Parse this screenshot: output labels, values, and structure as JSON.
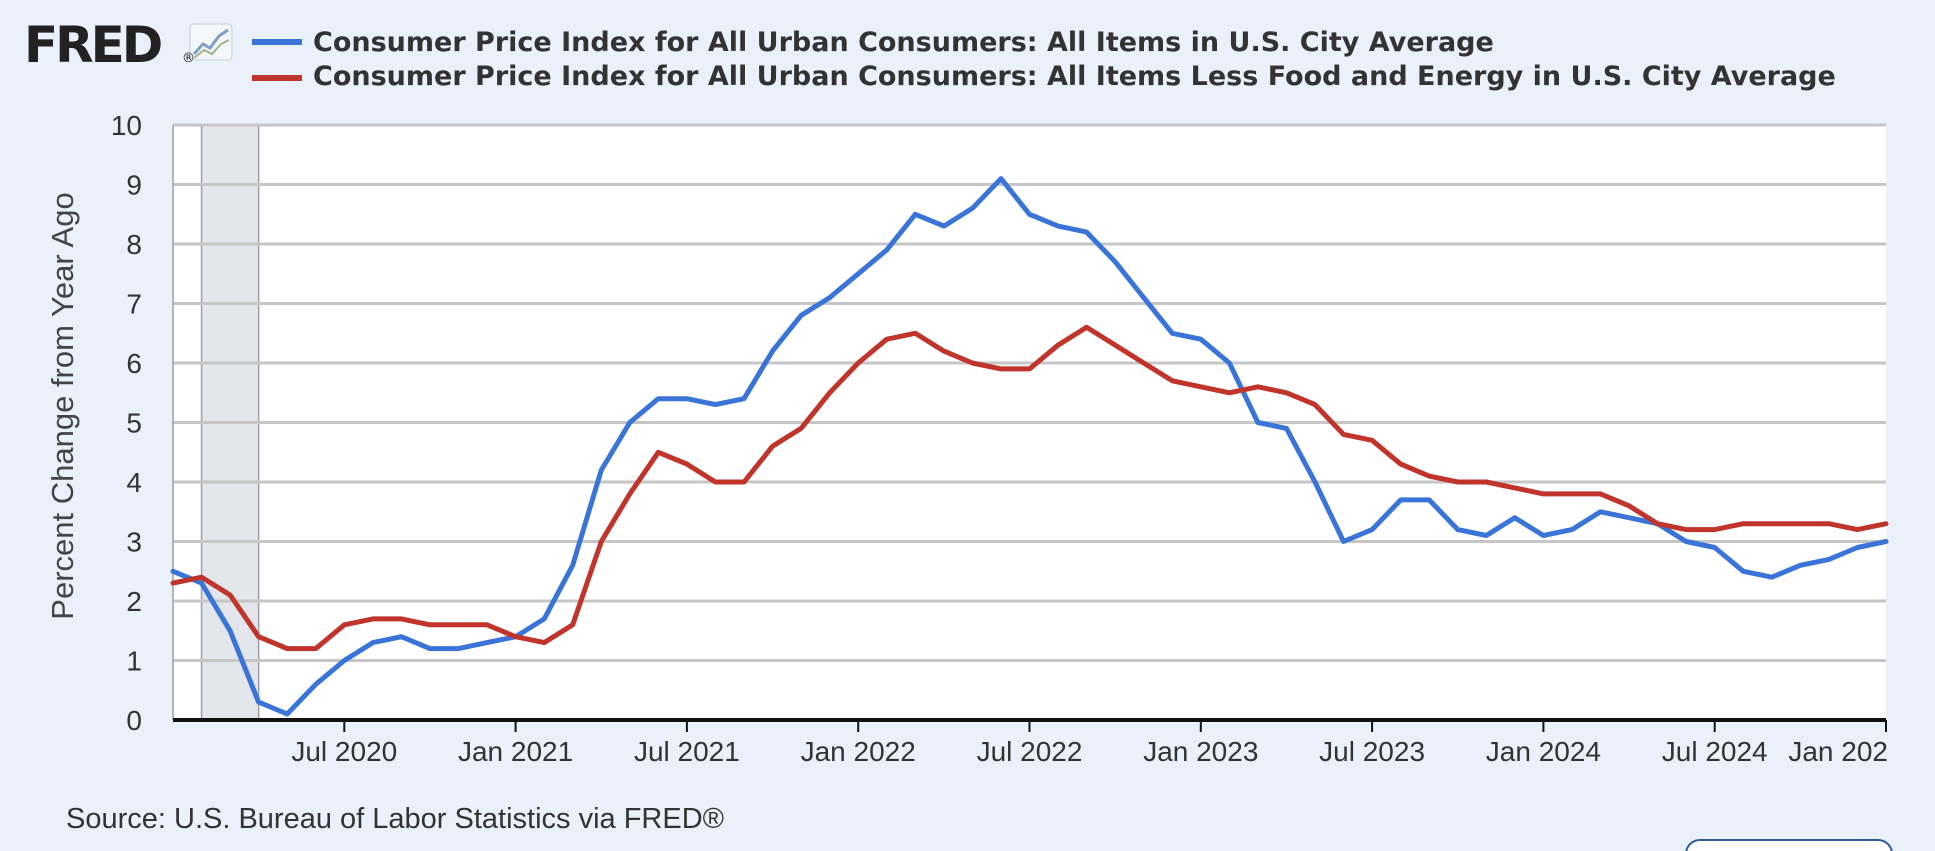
{
  "brand": {
    "name": "FRED",
    "mark": "®"
  },
  "source": "Source: U.S. Bureau of Labor Statistics via FRED®",
  "colors": {
    "series1": "#3a74d8",
    "series2": "#c0342c",
    "recession": "#e3e6ea",
    "grid": "#c6c6c6",
    "background": "#eaf1fa"
  },
  "chart_data": {
    "type": "line",
    "title": "",
    "xlabel": "",
    "ylabel": "Percent Change from Year Ago",
    "ylim": [
      0,
      10
    ],
    "yticks": [
      "0",
      "1",
      "2",
      "3",
      "4",
      "5",
      "6",
      "7",
      "8",
      "9",
      "10"
    ],
    "x_start": "2020-01",
    "x_end": "2025-01",
    "xticks": [
      {
        "label": "Jul 2020",
        "month": 6
      },
      {
        "label": "Jan 2021",
        "month": 12
      },
      {
        "label": "Jul 2021",
        "month": 18
      },
      {
        "label": "Jan 2022",
        "month": 24
      },
      {
        "label": "Jul 2022",
        "month": 30
      },
      {
        "label": "Jan 2023",
        "month": 36
      },
      {
        "label": "Jul 2023",
        "month": 42
      },
      {
        "label": "Jan 2024",
        "month": 48
      },
      {
        "label": "Jul 2024",
        "month": 54
      },
      {
        "label": "Jan 202",
        "month": 60
      }
    ],
    "recession": {
      "start_month": 1,
      "end_month": 3
    },
    "series": [
      {
        "name": "Consumer Price Index for All Urban Consumers: All Items in U.S. City Average",
        "color": "#3a74d8",
        "values": [
          2.5,
          2.3,
          1.5,
          0.3,
          0.1,
          0.6,
          1.0,
          1.3,
          1.4,
          1.2,
          1.2,
          1.3,
          1.4,
          1.7,
          2.6,
          4.2,
          5.0,
          5.4,
          5.4,
          5.3,
          5.4,
          6.2,
          6.8,
          7.1,
          7.5,
          7.9,
          8.5,
          8.3,
          8.6,
          9.1,
          8.5,
          8.3,
          8.2,
          7.7,
          7.1,
          6.5,
          6.4,
          6.0,
          5.0,
          4.9,
          4.0,
          3.0,
          3.2,
          3.7,
          3.7,
          3.2,
          3.1,
          3.4,
          3.1,
          3.2,
          3.5,
          3.4,
          3.3,
          3.0,
          2.9,
          2.5,
          2.4,
          2.6,
          2.7,
          2.9,
          3.0
        ]
      },
      {
        "name": "Consumer Price Index for All Urban Consumers: All Items Less Food and Energy in U.S. City Average",
        "color": "#c0342c",
        "values": [
          2.3,
          2.4,
          2.1,
          1.4,
          1.2,
          1.2,
          1.6,
          1.7,
          1.7,
          1.6,
          1.6,
          1.6,
          1.4,
          1.3,
          1.6,
          3.0,
          3.8,
          4.5,
          4.3,
          4.0,
          4.0,
          4.6,
          4.9,
          5.5,
          6.0,
          6.4,
          6.5,
          6.2,
          6.0,
          5.9,
          5.9,
          6.3,
          6.6,
          6.3,
          6.0,
          5.7,
          5.6,
          5.5,
          5.6,
          5.5,
          5.3,
          4.8,
          4.7,
          4.3,
          4.1,
          4.0,
          4.0,
          3.9,
          3.8,
          3.8,
          3.8,
          3.6,
          3.3,
          3.2,
          3.2,
          3.3,
          3.3,
          3.3,
          3.3,
          3.2,
          3.3
        ]
      }
    ]
  }
}
